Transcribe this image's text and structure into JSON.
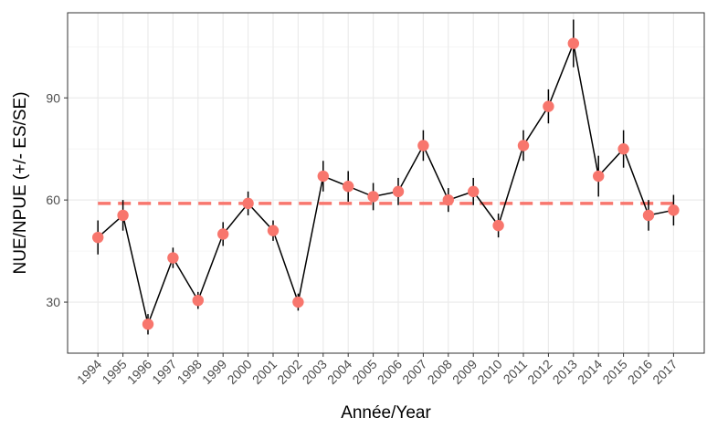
{
  "chart_data": {
    "type": "line",
    "xlabel": "Année/Year",
    "ylabel": "NUE/NPUE (+/- ES/SE)",
    "x": [
      "1994",
      "1995",
      "1996",
      "1997",
      "1998",
      "1999",
      "2000",
      "2001",
      "2002",
      "2003",
      "2004",
      "2005",
      "2006",
      "2007",
      "2008",
      "2009",
      "2010",
      "2011",
      "2012",
      "2013",
      "2014",
      "2015",
      "2016",
      "2017"
    ],
    "series": [
      {
        "values": [
          49,
          55.5,
          23.5,
          43,
          30.5,
          50,
          59,
          51,
          30,
          67,
          64,
          61,
          62.5,
          76,
          60,
          62.5,
          52.5,
          76,
          87.5,
          106,
          67,
          75,
          55.5,
          57
        ],
        "se": [
          5,
          4.5,
          3,
          3,
          2.5,
          3.5,
          3.5,
          3,
          2.5,
          4.5,
          4.5,
          4,
          4,
          4.5,
          3.5,
          4,
          3.5,
          4.5,
          5,
          7,
          6,
          5.5,
          4.5,
          4.5
        ]
      }
    ],
    "mean_line": 59,
    "ylim": [
      15,
      115
    ],
    "yticks": [
      30,
      60,
      90
    ],
    "grid": true,
    "colors": {
      "point": "#F8766D",
      "mean_line": "#F8766D",
      "line": "#000000",
      "error_bar": "#000000",
      "grid_major": "#ebebeb",
      "grid_minor": "#f3f3f3",
      "panel_border": "#333333"
    }
  }
}
